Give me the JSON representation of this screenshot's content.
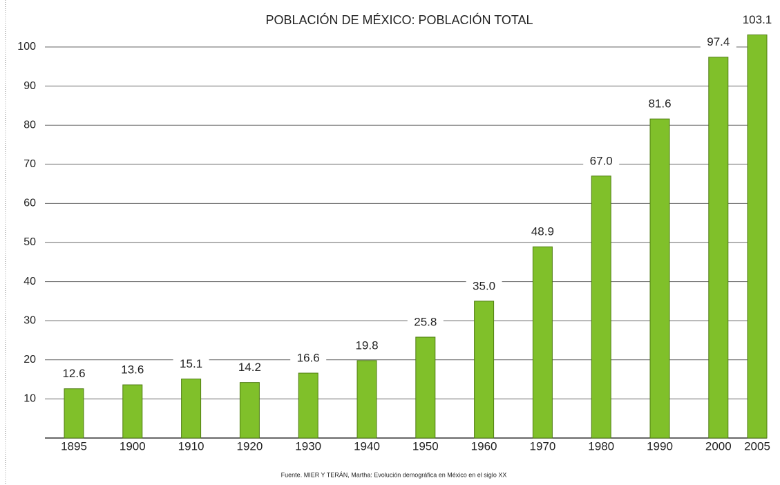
{
  "chart_data": {
    "type": "bar",
    "title": "POBLACIÓN DE MÉXICO: POBLACIÓN TOTAL",
    "categories": [
      "1895",
      "1900",
      "1910",
      "1920",
      "1930",
      "1940",
      "1950",
      "1960",
      "1970",
      "1980",
      "1990",
      "2000",
      "2005"
    ],
    "values": [
      12.6,
      13.6,
      15.1,
      14.2,
      16.6,
      19.8,
      25.8,
      35.0,
      48.9,
      67.0,
      81.6,
      97.4,
      103.1
    ],
    "value_labels": [
      "12.6",
      "13.6",
      "15.1",
      "14.2",
      "16.6",
      "19.8",
      "25.8",
      "35.0",
      "48.9",
      "67.0",
      "81.6",
      "97.4",
      "103.1"
    ],
    "color": "#80c02a",
    "ylim": [
      0,
      100
    ],
    "yticks": [
      10,
      20,
      30,
      40,
      50,
      60,
      70,
      80,
      90,
      100
    ],
    "grid": true,
    "source": "Fuente. MIER Y TERÁN, Martha: Evolución demográfica en México en el siglo XX"
  }
}
